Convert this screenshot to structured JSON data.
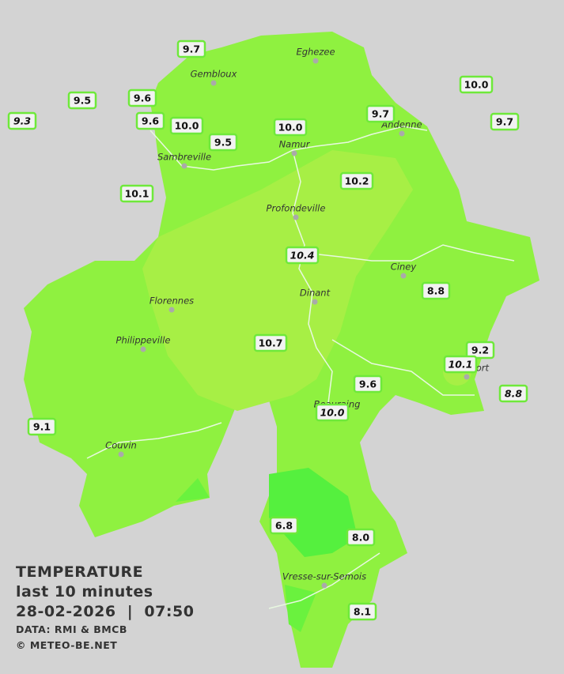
{
  "title": "TEMPERATURE",
  "subtitle": "last 10 minutes",
  "datetime": "28-02-2026  |  07:50",
  "credits": [
    "DATA: RMI & BMCB",
    "© METEO-BE.NET"
  ],
  "cities": [
    "Eghezee",
    "Gembloux",
    "Andenne",
    "Namur",
    "Sambreville",
    "Profondeville",
    "Ciney",
    "Florennes",
    "Dinant",
    "Philippeville",
    "Rochefort",
    "Beauraing",
    "Couvin",
    "Vresse-sur-Semois"
  ],
  "stations": [
    {
      "label": "9.7"
    },
    {
      "label": "9.5"
    },
    {
      "label": "9.6"
    },
    {
      "label": "9.3",
      "italic": true
    },
    {
      "label": "9.6"
    },
    {
      "label": "10.0"
    },
    {
      "label": "9.5"
    },
    {
      "label": "10.0"
    },
    {
      "label": "9.7"
    },
    {
      "label": "10.0"
    },
    {
      "label": "9.7"
    },
    {
      "label": "10.1"
    },
    {
      "label": "10.2"
    },
    {
      "label": "10.4",
      "italic": true
    },
    {
      "label": "8.8"
    },
    {
      "label": "10.7"
    },
    {
      "label": "9.2"
    },
    {
      "label": "10.1",
      "italic": true
    },
    {
      "label": "9.6"
    },
    {
      "label": "10.0",
      "italic": true
    },
    {
      "label": "8.8",
      "italic": true
    },
    {
      "label": "9.1"
    },
    {
      "label": "6.8"
    },
    {
      "label": "8.0"
    },
    {
      "label": "8.1"
    }
  ]
}
